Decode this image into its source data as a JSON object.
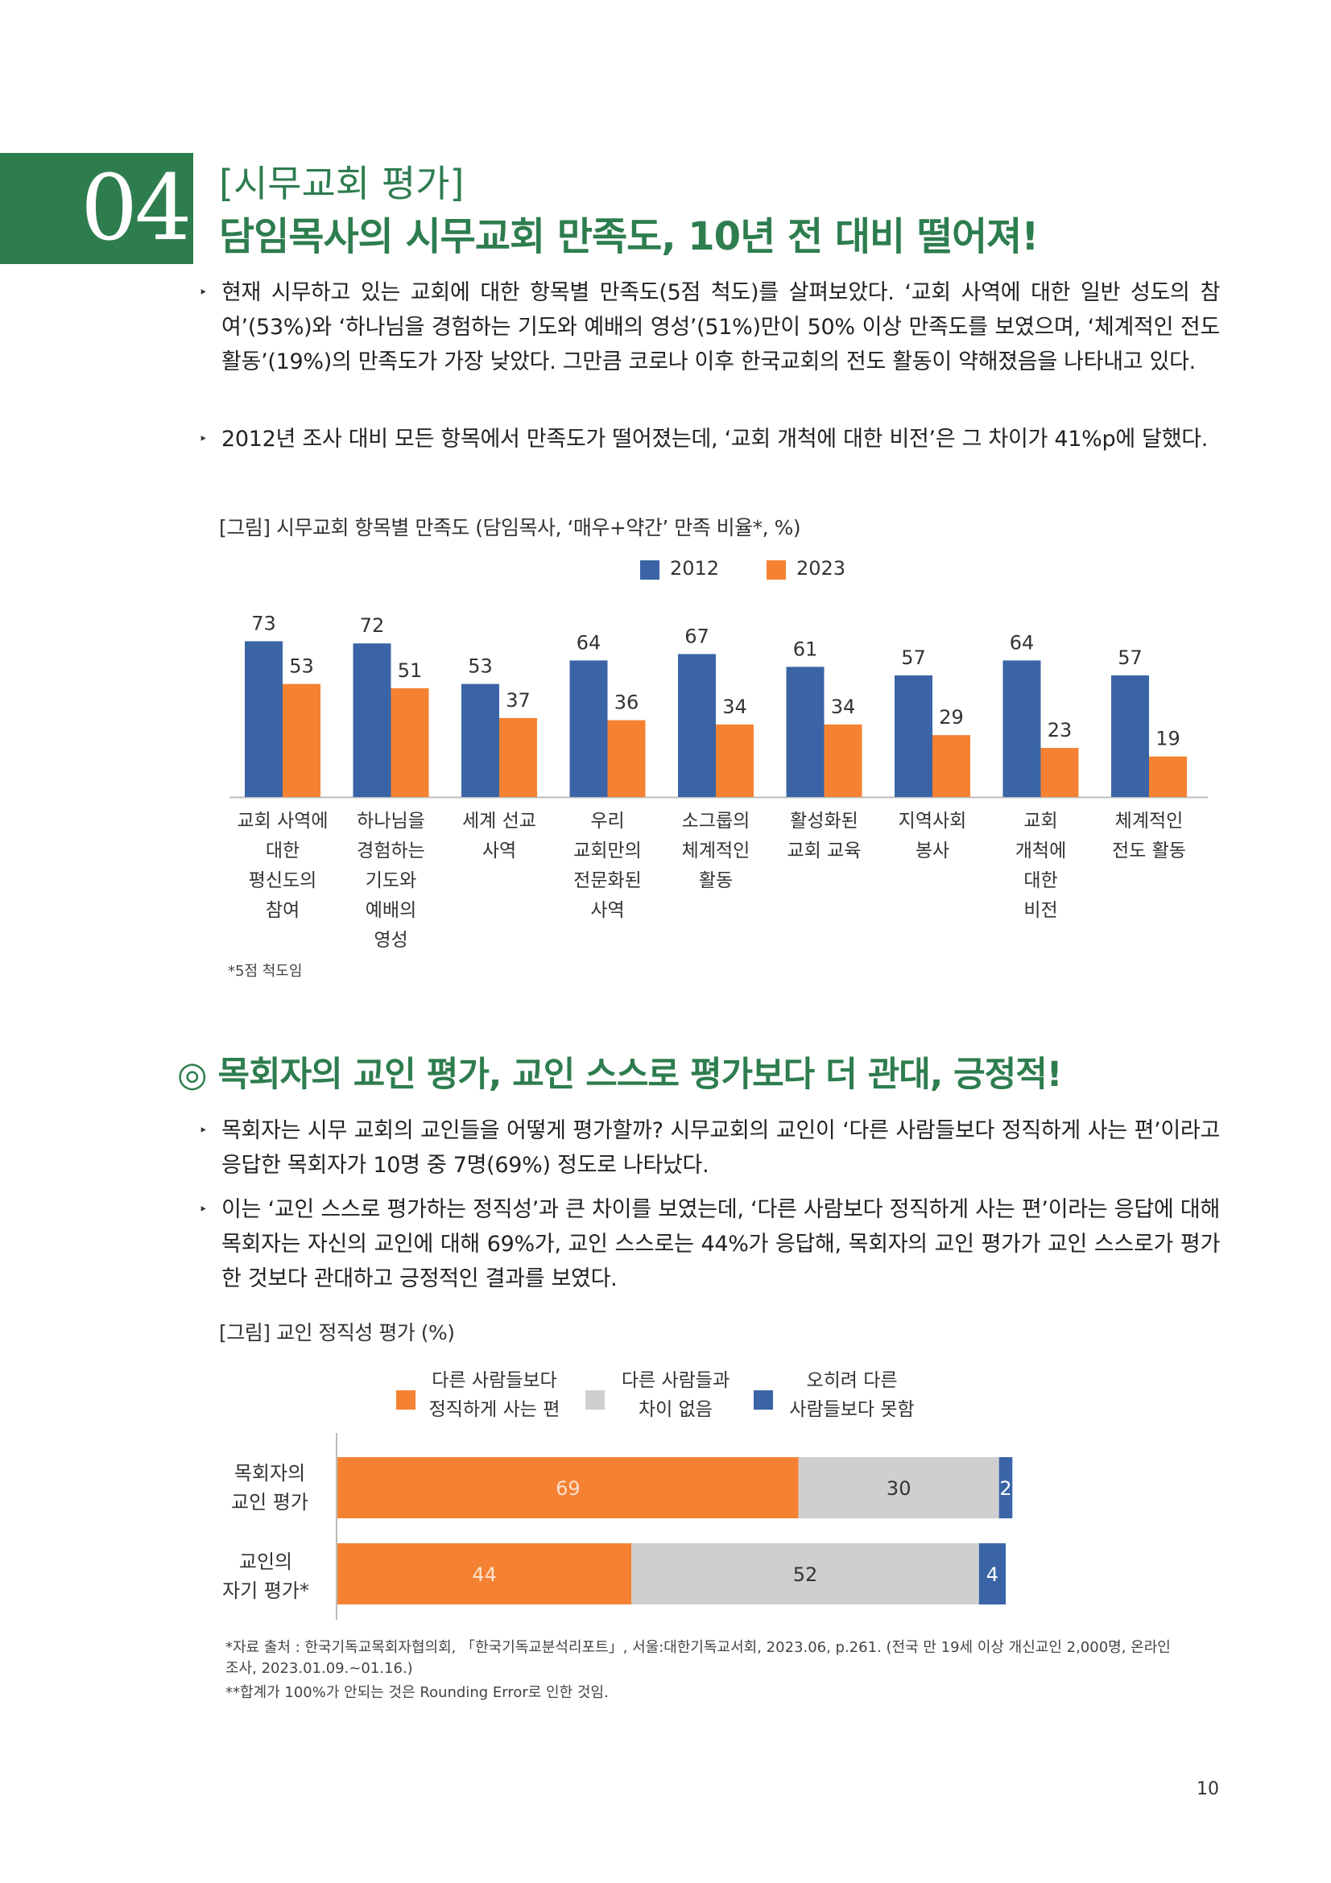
{
  "section": {
    "number": "04",
    "subtitle": "[시무교회 평가]",
    "title": "담임목사의 시무교회 만족도, 10년 전 대비 떨어져!"
  },
  "paragraphs1": [
    "현재 시무하고 있는 교회에 대한 항목별 만족도(5점 척도)를 살펴보았다. ‘교회 사역에 대한 일반 성도의 참여’(53%)와 ‘하나님을 경험하는 기도와 예배의 영성’(51%)만이 50% 이상 만족도를 보였으며, ‘체계적인 전도 활동’(19%)의 만족도가 가장 낮았다. 그만큼 코로나 이후 한국교회의 전도 활동이 약해졌음을 나타내고 있다.",
    "2012년 조사 대비 모든 항목에서 만족도가 떨어졌는데, ‘교회 개척에 대한 비전’은 그 차이가 41%p에 달했다."
  ],
  "chart1_caption": "[그림] 시무교회 항목별 만족도 (담임목사, ‘매우+약간’ 만족 비율*, %)",
  "chart1_footnote": "*5점 척도임",
  "chart_data": [
    {
      "type": "bar",
      "title": "[그림] 시무교회 항목별 만족도 (담임목사, ‘매우+약간’ 만족 비율*, %)",
      "categories": [
        "교회 사역에\n대한\n평신도의\n참여",
        "하나님을\n경험하는\n기도와\n예배의\n영성",
        "세계 선교\n사역",
        "우리\n교회만의\n전문화된\n사역",
        "소그룹의\n체계적인\n활동",
        "활성화된\n교회 교육",
        "지역사회\n봉사",
        "교회\n개척에\n대한\n비전",
        "체계적인\n전도 활동"
      ],
      "series": [
        {
          "name": "2012",
          "color": "#3a64a6",
          "values": [
            73,
            72,
            53,
            64,
            67,
            61,
            57,
            64,
            57
          ]
        },
        {
          "name": "2023",
          "color": "#f58232",
          "values": [
            53,
            51,
            37,
            36,
            34,
            34,
            29,
            23,
            19
          ]
        }
      ],
      "ylim": [
        0,
        100
      ],
      "grid": false,
      "legend": "top-center"
    },
    {
      "type": "stacked-bar-horizontal",
      "title": "[그림] 교인 정직성 평가 (%)",
      "categories": [
        "목회자의\n교인 평가",
        "교인의\n자기 평가*"
      ],
      "series": [
        {
          "name": "다른 사람들보다\n정직하게 사는 편",
          "color": "#f58232",
          "values": [
            69,
            44
          ]
        },
        {
          "name": "다른 사람들과\n차이 없음",
          "color": "#cfcfcf",
          "values": [
            30,
            52
          ]
        },
        {
          "name": "오히려 다른\n사람들보다 못함",
          "color": "#3a64a6",
          "values": [
            2,
            4
          ]
        }
      ],
      "xlim": [
        0,
        100
      ],
      "legend": "top-center"
    }
  ],
  "section2_title": "◎ 목회자의 교인 평가, 교인 스스로 평가보다 더 관대, 긍정적!",
  "paragraphs2": [
    "목회자는 시무 교회의 교인들을 어떻게 평가할까? 시무교회의 교인이 ‘다른 사람들보다 정직하게 사는 편’이라고 응답한 목회자가 10명 중 7명(69%) 정도로 나타났다.",
    "이는 ‘교인 스스로 평가하는 정직성’과 큰 차이를 보였는데, ‘다른 사람보다 정직하게 사는 편’이라는 응답에 대해 목회자는 자신의 교인에 대해 69%가, 교인 스스로는 44%가 응답해, 목회자의 교인 평가가 교인 스스로가 평가한 것보다 관대하고 긍정적인 결과를 보였다."
  ],
  "chart2_caption": "[그림] 교인 정직성 평가 (%)",
  "footnotes": [
    "*자료 출처 : 한국기독교목회자협의회, 「한국기독교분석리포트」, 서울:대한기독교서회, 2023.06, p.261. (전국 만 19세 이상 개신교인 2,000명, 온라인 조사, 2023.01.09.~01.16.)",
    "**합계가 100%가 안되는 것은 Rounding Error로 인한 것임."
  ],
  "page_number": "10"
}
